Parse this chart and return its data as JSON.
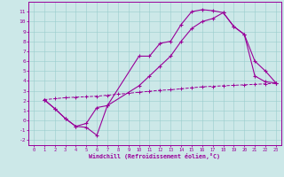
{
  "background_color": "#cce8e8",
  "line_color": "#990099",
  "xlabel": "Windchill (Refroidissement éolien,°C)",
  "xlim": [
    -0.5,
    23.5
  ],
  "ylim": [
    -2.5,
    12
  ],
  "xticks": [
    0,
    1,
    2,
    3,
    4,
    5,
    6,
    7,
    8,
    9,
    10,
    11,
    12,
    13,
    14,
    15,
    16,
    17,
    18,
    19,
    20,
    21,
    22,
    23
  ],
  "yticks": [
    -2,
    -1,
    0,
    1,
    2,
    3,
    4,
    5,
    6,
    7,
    8,
    9,
    10,
    11
  ],
  "curve1_x": [
    1,
    2,
    3,
    4,
    5,
    6,
    7,
    10,
    11,
    12,
    13,
    14,
    15,
    16,
    17,
    18,
    19,
    20,
    21,
    22,
    23
  ],
  "curve1_y": [
    2.1,
    1.2,
    0.2,
    -0.6,
    -0.7,
    -1.5,
    1.5,
    6.5,
    6.5,
    7.8,
    8.0,
    9.7,
    11.0,
    11.2,
    11.1,
    10.9,
    9.5,
    8.7,
    4.5,
    3.9,
    3.8
  ],
  "curve2_x": [
    1,
    2,
    3,
    4,
    5,
    6,
    7,
    10,
    11,
    12,
    13,
    14,
    15,
    16,
    17,
    18,
    19,
    20,
    21,
    22,
    23
  ],
  "curve2_y": [
    2.1,
    1.2,
    0.2,
    -0.6,
    -0.3,
    1.3,
    1.5,
    3.5,
    4.5,
    5.5,
    6.5,
    8.0,
    9.3,
    10.0,
    10.3,
    10.9,
    9.5,
    8.7,
    6.0,
    5.0,
    3.8
  ],
  "curve3_x": [
    1,
    2,
    3,
    4,
    5,
    6,
    7,
    8,
    9,
    10,
    11,
    12,
    13,
    14,
    15,
    16,
    17,
    18,
    19,
    20,
    21,
    22,
    23
  ],
  "curve3_y": [
    2.1,
    2.2,
    2.3,
    2.35,
    2.4,
    2.45,
    2.55,
    2.65,
    2.75,
    2.85,
    2.95,
    3.05,
    3.1,
    3.2,
    3.3,
    3.4,
    3.45,
    3.5,
    3.55,
    3.6,
    3.65,
    3.7,
    3.75
  ],
  "marker": "+"
}
